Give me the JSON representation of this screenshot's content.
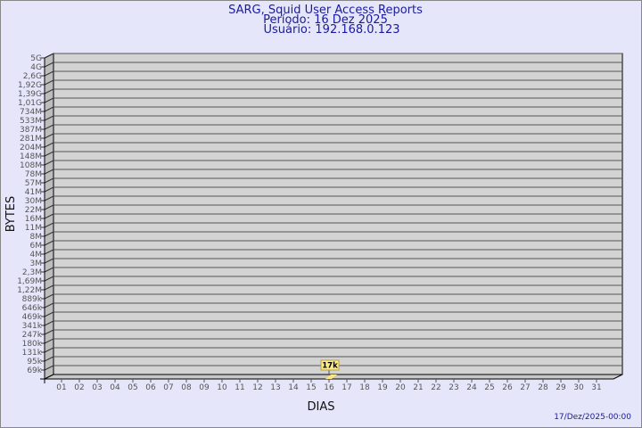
{
  "chart_data": {
    "type": "bar",
    "title": [
      "SARG, Squid User Access Reports",
      "Período: 16 Dez 2025",
      "Usuário: 192.168.0.123"
    ],
    "xlabel": "DIAS",
    "ylabel": "BYTES",
    "categories": [
      "01",
      "02",
      "03",
      "04",
      "05",
      "06",
      "07",
      "08",
      "09",
      "10",
      "11",
      "12",
      "13",
      "14",
      "15",
      "16",
      "17",
      "18",
      "19",
      "20",
      "21",
      "22",
      "23",
      "24",
      "25",
      "26",
      "27",
      "28",
      "29",
      "30",
      "31"
    ],
    "y_tick_labels": [
      "5G",
      "4G",
      "2,6G",
      "1,92G",
      "1,39G",
      "1,01G",
      "734M",
      "533M",
      "387M",
      "281M",
      "204M",
      "148M",
      "108M",
      "78M",
      "57M",
      "41M",
      "30M",
      "22M",
      "16M",
      "11M",
      "8M",
      "6M",
      "4M",
      "3M",
      "2,3M",
      "1,69M",
      "1,22M",
      "889k",
      "646k",
      "469k",
      "341k",
      "247k",
      "180k",
      "131k",
      "95k",
      "69k"
    ],
    "y_scale": "log",
    "series": [
      {
        "values": [
          null,
          null,
          null,
          null,
          null,
          null,
          null,
          null,
          null,
          null,
          null,
          null,
          null,
          null,
          null,
          17000,
          null,
          null,
          null,
          null,
          null,
          null,
          null,
          null,
          null,
          null,
          null,
          null,
          null,
          null,
          null
        ]
      }
    ],
    "data_labels": {
      "16": "17k"
    },
    "grid": true,
    "colors": {
      "background": "#e6e6fa",
      "plot_wall": "#d3d3d3",
      "bar": "#ffe680",
      "label_box": "#ffeb8a",
      "title": "#1a1a9c"
    },
    "footer": "17/Dez/2025-00:00"
  }
}
